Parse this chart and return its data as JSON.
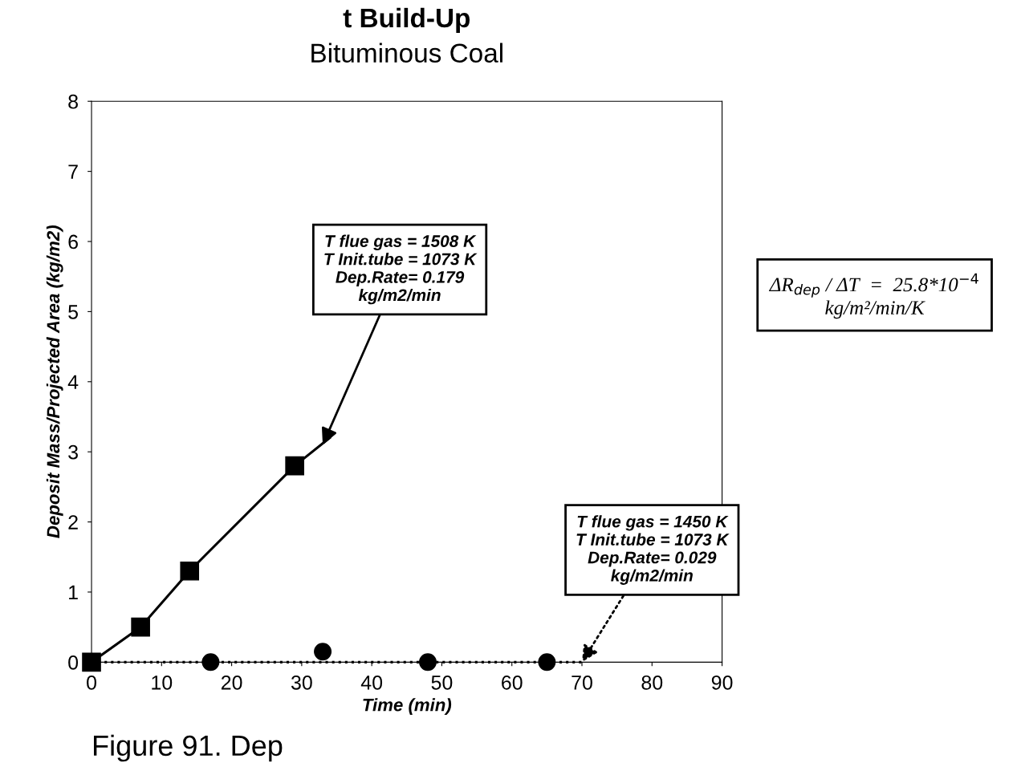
{
  "chart_data": {
    "type": "line",
    "title": "t Build-Up",
    "subtitle": "Bituminous Coal",
    "xlabel": "Time (min)",
    "ylabel": "Deposit Mass/Projected Area (kg/m2)",
    "xlim": [
      0,
      90
    ],
    "xticks": [
      0,
      10,
      20,
      30,
      40,
      50,
      60,
      70,
      80,
      90
    ],
    "ylim": [
      0,
      8
    ],
    "yticks": [
      0,
      1,
      2,
      3,
      4,
      5,
      6,
      7,
      8
    ],
    "grid": false,
    "legend": false,
    "series": [
      {
        "color": "#000000",
        "marker": "square",
        "line_style": "solid",
        "x": [
          0,
          7,
          14,
          29,
          34
        ],
        "values": [
          0,
          0.5,
          1.3,
          2.8,
          3.2
        ]
      },
      {
        "type": "scatter",
        "color": "#000000",
        "marker": "circle",
        "x": [
          17,
          33,
          48,
          65
        ],
        "values": [
          0,
          0.15,
          0,
          0
        ]
      },
      {
        "type": "line",
        "color": "#000000",
        "marker": "none",
        "line_style": "dotted",
        "x": [
          0,
          70
        ],
        "values": [
          0,
          0
        ]
      }
    ],
    "annotations": [
      {
        "text": "T flue gas = 1508 K\nT Init.tube = 1073 K\nDep.Rate= 0.179\nkg/m2/min",
        "x": 33,
        "y": 3.1
      },
      {
        "text": "T flue gas = 1450 K\nT Init.tube = 1073 K\nDep.Rate= 0.029\nkg/m2/min",
        "x": 70,
        "y": 0
      },
      "ΔR$_{dep}$ / ΔT  =  25.8*10$^{−4}$\nkg/m²/min/K",
      "Figure 91. Dep"
    ]
  }
}
